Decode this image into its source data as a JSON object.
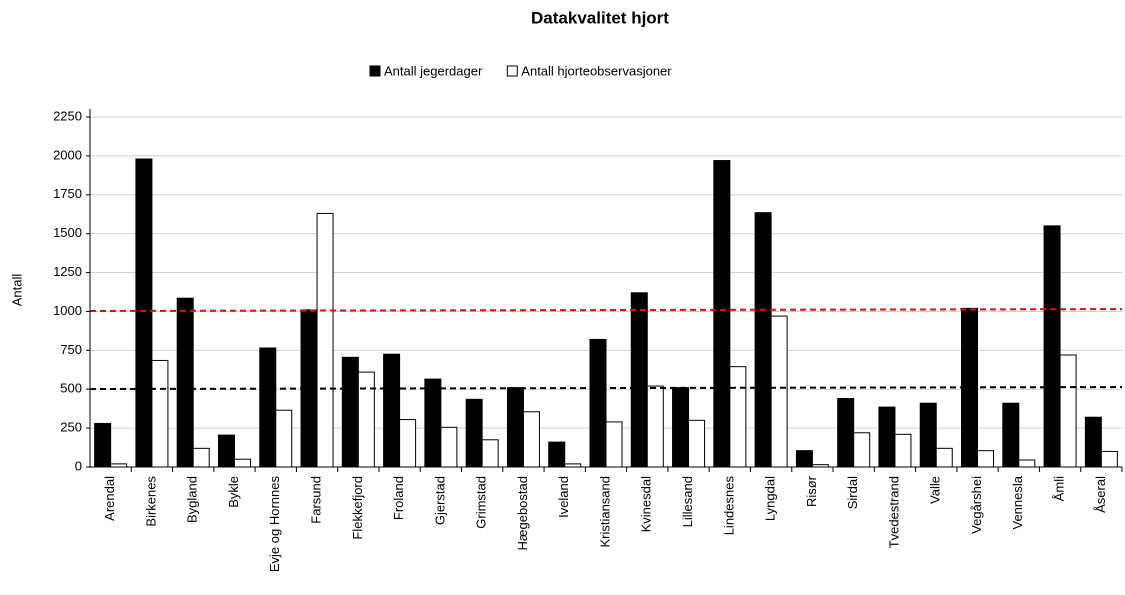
{
  "chart_data": {
    "type": "bar",
    "title": "Datakvalitet hjort",
    "y_label": "Antall",
    "categories": [
      "Arendal",
      "Birkenes",
      "Bygland",
      "Bykle",
      "Evje og Hornnes",
      "Farsund",
      "Flekkefjord",
      "Froland",
      "Gjerstad",
      "Grimstad",
      "Hægebostad",
      "Iveland",
      "Kristiansand",
      "Kvinesdal",
      "Lillesand",
      "Lindesnes",
      "Lyngdal",
      "Risør",
      "Sirdal",
      "Tvedestrand",
      "Valle",
      "Vegårshei",
      "Vennesla",
      "Åmli",
      "Åseral"
    ],
    "series": [
      {
        "name": "Antall jegerdager",
        "color": "#000000",
        "values": [
          280,
          1980,
          1085,
          205,
          765,
          1010,
          705,
          725,
          565,
          435,
          510,
          160,
          820,
          1120,
          510,
          1970,
          1635,
          105,
          440,
          385,
          410,
          1020,
          410,
          1550,
          320
        ]
      },
      {
        "name": "Antall hjorteobservasjoner",
        "color": "#ffffff",
        "values": [
          20,
          685,
          120,
          50,
          365,
          1630,
          610,
          305,
          255,
          175,
          355,
          20,
          290,
          520,
          300,
          645,
          970,
          15,
          220,
          210,
          120,
          105,
          45,
          720,
          100
        ]
      }
    ],
    "reference_lines": [
      {
        "color": "#ff0000",
        "values": [
          1003,
          1015
        ]
      },
      {
        "color": "#000000",
        "values": [
          501,
          514
        ]
      }
    ],
    "ylim": [
      0,
      2250
    ],
    "yticks": [
      0,
      250,
      500,
      750,
      1000,
      1250,
      1500,
      1750,
      2000,
      2250
    ],
    "grid": true,
    "legend": "top"
  }
}
